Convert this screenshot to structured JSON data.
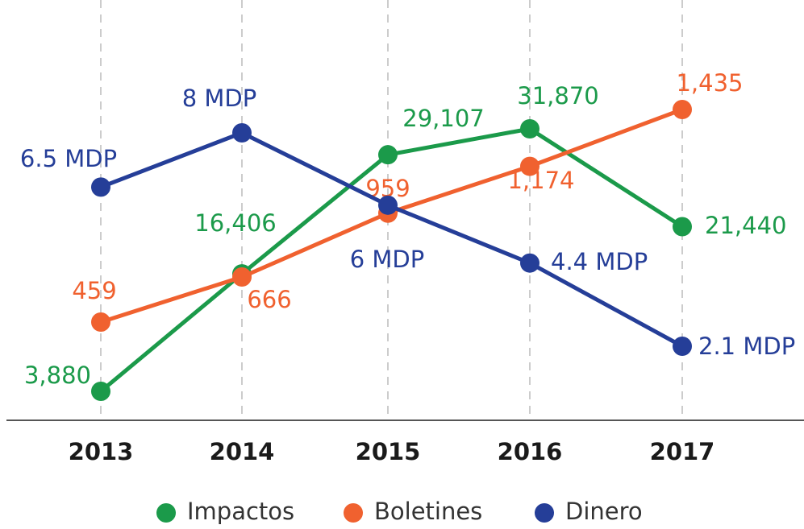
{
  "chart_data": {
    "type": "line",
    "categories": [
      "2013",
      "2014",
      "2015",
      "2016",
      "2017"
    ],
    "series": [
      {
        "name": "Impactos",
        "color": "#1b9a4a",
        "values": [
          3880,
          16406,
          29107,
          31870,
          21440
        ],
        "value_labels": [
          "3,880",
          "16,406",
          "29,107",
          "31,870",
          "21,440"
        ]
      },
      {
        "name": "Boletines",
        "color": "#f0612f",
        "values": [
          459,
          666,
          959,
          1174,
          1435
        ],
        "value_labels": [
          "459",
          "666",
          "959",
          "1,174",
          "1,435"
        ]
      },
      {
        "name": "Dinero",
        "color": "#253e98",
        "values": [
          6.5,
          8,
          6,
          4.4,
          2.1
        ],
        "value_labels": [
          "6.5 MDP",
          "8 MDP",
          "6 MDP",
          "4.4 MDP",
          "2.1 MDP"
        ]
      }
    ],
    "grid": true,
    "legend": "bottom"
  }
}
